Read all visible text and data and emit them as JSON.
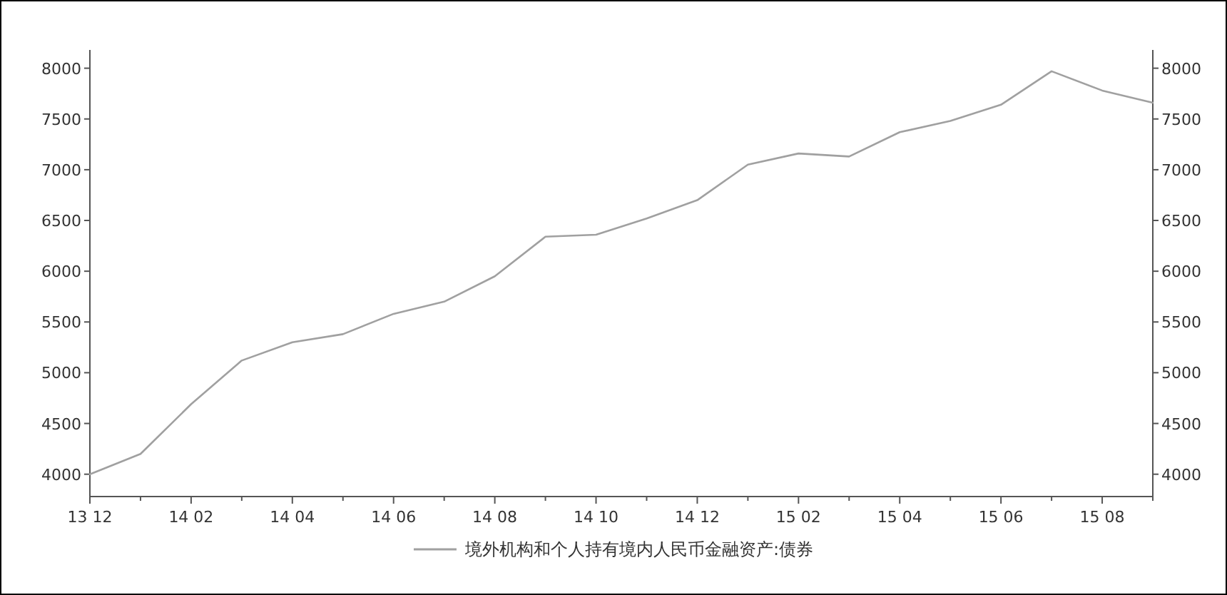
{
  "chart_data": {
    "type": "line",
    "categories": [
      "13 12",
      null,
      "14 02",
      null,
      "14 04",
      null,
      "14 06",
      null,
      "14 08",
      null,
      "14 10",
      null,
      "14 12",
      null,
      "15 02",
      null,
      "15 04",
      null,
      "15 06",
      null,
      "15 08",
      null
    ],
    "series": [
      {
        "name": "境外机构和个人持有境内人民币金融资产:债券",
        "color": "#a0a0a0",
        "values": [
          4000,
          4200,
          4690,
          5120,
          5300,
          5380,
          5580,
          5700,
          5950,
          6340,
          6360,
          6520,
          6700,
          7050,
          7160,
          7130,
          7370,
          7480,
          7640,
          7970,
          7780,
          7660
        ]
      }
    ],
    "ylim": [
      3780,
      8180
    ],
    "yticks": [
      4000,
      4500,
      5000,
      5500,
      6000,
      6500,
      7000,
      7500,
      8000
    ],
    "y2lim": [
      3780,
      8180
    ],
    "y2ticks": [
      4000,
      4500,
      5000,
      5500,
      6000,
      6500,
      7000,
      7500,
      8000
    ],
    "grid": false,
    "legend": "bottom",
    "marker": "none",
    "line_style": "solid"
  }
}
